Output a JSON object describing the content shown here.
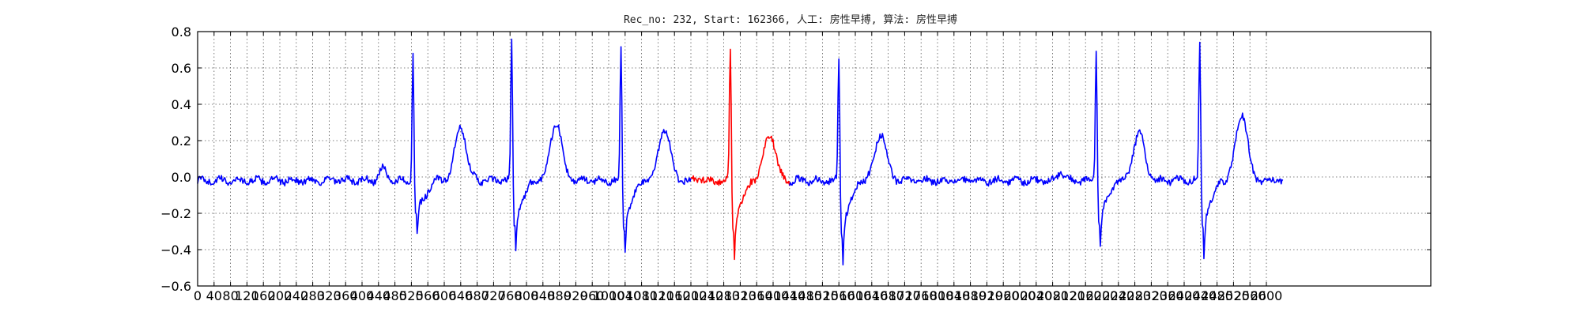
{
  "chart_data": {
    "type": "line",
    "title": "Rec_no: 232, Start: 162366, 人工: 房性早搏, 算法: 房性早搏",
    "xlabel": "",
    "ylabel": "",
    "xlim": [
      0,
      3000
    ],
    "ylim": [
      -0.6,
      0.8
    ],
    "grid": true,
    "x_ticks": [
      0,
      40,
      80,
      120,
      160,
      200,
      240,
      280,
      320,
      360,
      400,
      440,
      480,
      520,
      560,
      600,
      640,
      680,
      720,
      760,
      800,
      840,
      880,
      920,
      960,
      1000,
      1040,
      1080,
      1120,
      1160,
      1200,
      1240,
      1280,
      1320,
      1360,
      1400,
      1440,
      1480,
      1520,
      1560,
      1600,
      1640,
      1680,
      1720,
      1760,
      1800,
      1840,
      1880,
      1920,
      1960,
      2000,
      2040,
      2080,
      2120,
      2160,
      2200,
      2240,
      2280,
      2320,
      2360,
      2400,
      2440,
      2480,
      2520,
      2560,
      2600
    ],
    "y_ticks": [
      -0.6,
      -0.4,
      -0.2,
      0.0,
      0.2,
      0.4,
      0.6,
      0.8
    ],
    "y_tick_labels": [
      "−0.6",
      "−0.4",
      "−0.2",
      "0.0",
      "0.2",
      "0.4",
      "0.6",
      "0.8"
    ],
    "sample_count": 2640,
    "baseline": -0.02,
    "noise_amplitude": 0.018,
    "colors": {
      "normal": "#0000ff",
      "highlight": "#ff0000",
      "grid": "#555555",
      "axis": "#000000"
    },
    "highlight_range": [
      1200,
      1440
    ],
    "beats": [
      {
        "r_x": 524,
        "r_peak": 0.7,
        "s_min": -0.31,
        "t_x": 640,
        "t_peak": 0.27
      },
      {
        "r_x": 764,
        "r_peak": 0.78,
        "s_min": -0.37,
        "t_x": 872,
        "t_peak": 0.3
      },
      {
        "r_x": 1030,
        "r_peak": 0.76,
        "s_min": -0.38,
        "t_x": 1136,
        "t_peak": 0.27
      },
      {
        "r_x": 1296,
        "r_peak": 0.74,
        "s_min": -0.41,
        "t_x": 1392,
        "t_peak": 0.24
      },
      {
        "r_x": 1560,
        "r_peak": 0.69,
        "s_min": -0.43,
        "t_x": 1662,
        "t_peak": 0.24
      },
      {
        "r_x": 2186,
        "r_peak": 0.72,
        "s_min": -0.35,
        "t_x": 2290,
        "t_peak": 0.24
      },
      {
        "r_x": 2438,
        "r_peak": 0.79,
        "s_min": -0.4,
        "t_x": 2540,
        "t_peak": 0.35
      }
    ],
    "p_waves": [
      {
        "x": 450,
        "peak": 0.09
      },
      {
        "x": 1220,
        "peak": 0.0
      },
      {
        "x": 2100,
        "peak": 0.06
      }
    ]
  }
}
